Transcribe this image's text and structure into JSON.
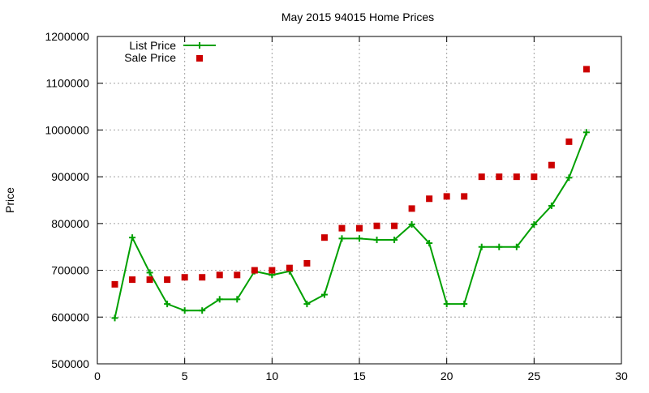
{
  "chart_data": {
    "type": "line",
    "title": "May 2015 94015 Home Prices",
    "xlabel": "",
    "ylabel": "Price",
    "xlim": [
      0,
      30
    ],
    "ylim": [
      500000,
      1200000
    ],
    "x_ticks": [
      0,
      5,
      10,
      15,
      20,
      25,
      30
    ],
    "y_ticks": [
      500000,
      600000,
      700000,
      800000,
      900000,
      1000000,
      1100000,
      1200000
    ],
    "grid": true,
    "legend_position": "top-left",
    "x": [
      1,
      2,
      3,
      4,
      5,
      6,
      7,
      8,
      9,
      10,
      11,
      12,
      13,
      14,
      15,
      16,
      17,
      18,
      19,
      20,
      21,
      22,
      23,
      24,
      25,
      26,
      27,
      28
    ],
    "series": [
      {
        "name": "List Price",
        "style": "line+cross",
        "color": "#00a000",
        "values": [
          598000,
          770000,
          695000,
          628000,
          614000,
          614000,
          638000,
          638000,
          698000,
          690000,
          698000,
          628000,
          648000,
          768000,
          768000,
          765000,
          765000,
          798000,
          758000,
          628000,
          628000,
          750000,
          750000,
          750000,
          798000,
          838000,
          898000,
          995000
        ]
      },
      {
        "name": "Sale Price",
        "style": "square",
        "color": "#cc0000",
        "values": [
          670000,
          680000,
          680000,
          680000,
          685000,
          685000,
          690000,
          690000,
          700000,
          700000,
          705000,
          715000,
          770000,
          790000,
          790000,
          795000,
          795000,
          832000,
          853000,
          858000,
          858000,
          900000,
          900000,
          900000,
          900000,
          925000,
          975000,
          1130000
        ]
      }
    ]
  }
}
